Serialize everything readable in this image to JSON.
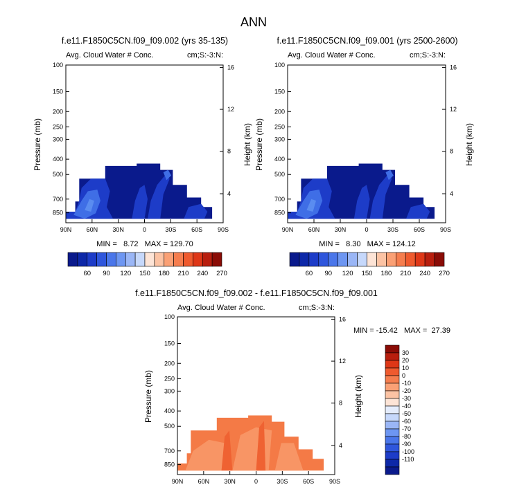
{
  "page_title": "ANN",
  "colors": {
    "deep_blue": "#0a1a8c",
    "mid_blue": "#1d3cc8",
    "light_blue": "#3f6ee6",
    "bright_blue": "#5a8cf0",
    "diff_orange": "#f47a46",
    "diff_light_orange": "#f89565",
    "diff_dark_orange": "#ef6232"
  },
  "chart_data": [
    {
      "type": "contour",
      "title": "f.e11.F1850C5CN.f09_f09.002 (yrs 35-135)",
      "left_label": "Avg. Cloud Water # Conc.",
      "right_label": "cm;S:-3:N:",
      "xlabel": "",
      "ylabel": "Pressure (mb)",
      "y2label": "Height (km)",
      "x_ticks": [
        "90N",
        "60N",
        "30N",
        "0",
        "30S",
        "60S",
        "90S"
      ],
      "y_ticks": [
        "100",
        "150",
        "200",
        "250",
        "300",
        "400",
        "500",
        "700",
        "850"
      ],
      "y2_ticks": [
        "16",
        "12",
        "8",
        "4"
      ],
      "stats": "MIN =   8.72   MAX = 129.70",
      "min": 8.72,
      "max": 129.7
    },
    {
      "type": "contour",
      "title": "f.e11.F1850C5CN.f09_f09.001 (yrs 2500-2600)",
      "left_label": "Avg. Cloud Water # Conc.",
      "right_label": "cm;S:-3:N:",
      "xlabel": "",
      "ylabel": "Pressure (mb)",
      "y2label": "Height (km)",
      "x_ticks": [
        "90N",
        "60N",
        "30N",
        "0",
        "30S",
        "60S",
        "90S"
      ],
      "y_ticks": [
        "100",
        "150",
        "200",
        "250",
        "300",
        "400",
        "500",
        "700",
        "850"
      ],
      "y2_ticks": [
        "16",
        "12",
        "8",
        "4"
      ],
      "stats": "MIN =   8.30   MAX = 124.12",
      "min": 8.3,
      "max": 124.12
    },
    {
      "type": "contour",
      "title": "f.e11.F1850C5CN.f09_f09.002 - f.e11.F1850C5CN.f09_f09.001",
      "left_label": "Avg. Cloud Water # Conc.",
      "right_label": "cm;S:-3:N:",
      "xlabel": "",
      "ylabel": "Pressure (mb)",
      "y2label": "Height (km)",
      "x_ticks": [
        "90N",
        "60N",
        "30N",
        "0",
        "30S",
        "60S",
        "90S"
      ],
      "y_ticks": [
        "100",
        "150",
        "200",
        "250",
        "300",
        "400",
        "500",
        "700",
        "850"
      ],
      "y2_ticks": [
        "16",
        "12",
        "8",
        "4"
      ],
      "stats": "MIN = -15.42   MAX =  27.39",
      "min": -15.42,
      "max": 27.39
    }
  ],
  "colorbar_main": {
    "labels": [
      "60",
      "90",
      "120",
      "150",
      "180",
      "210",
      "240",
      "270"
    ],
    "colors": [
      "#0a1a8c",
      "#0d28a8",
      "#1d3cc8",
      "#2f56dc",
      "#4a76ea",
      "#6d96f2",
      "#9ab6f6",
      "#c6d8fb",
      "#fde4d6",
      "#fcc3a4",
      "#faa075",
      "#f57d4e",
      "#ef5a2e",
      "#de3717",
      "#b81e0e",
      "#8a0c06"
    ]
  },
  "colorbar_diff": {
    "labels": [
      "30",
      "20",
      "10",
      "0",
      "-10",
      "-20",
      "-30",
      "-40",
      "-50",
      "-60",
      "-70",
      "-80",
      "-90",
      "-100",
      "-110"
    ],
    "colors": [
      "#8a0c06",
      "#b81e0e",
      "#de3717",
      "#ef5a2e",
      "#f57d4e",
      "#faa075",
      "#fcc3a4",
      "#fde4d6",
      "#e4ecfc",
      "#c6d8fb",
      "#9ab6f6",
      "#6d96f2",
      "#4a76ea",
      "#2f56dc",
      "#1d3cc8",
      "#0d28a8",
      "#0a1a8c"
    ]
  }
}
